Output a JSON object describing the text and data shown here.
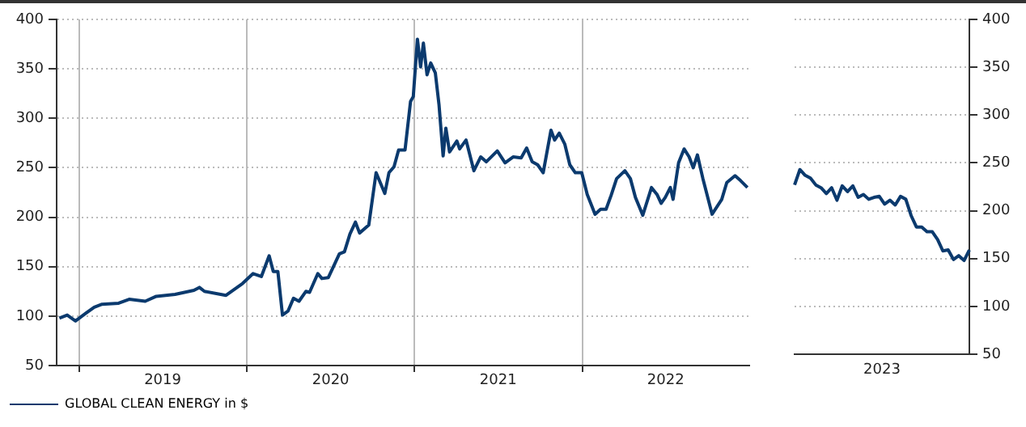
{
  "chart_data": [
    {
      "type": "line",
      "legend": "bottom left",
      "grid": true,
      "xlim": [
        "2018-11-13",
        "2022-12-31"
      ],
      "xticks": [
        {
          "value": "2019-01-01",
          "label": null
        },
        {
          "value": "2019-07-02",
          "label": "2019"
        },
        {
          "value": "2020-01-01",
          "label": null
        },
        {
          "value": "2020-07-02",
          "label": "2020"
        },
        {
          "value": "2021-01-01",
          "label": null
        },
        {
          "value": "2021-07-02",
          "label": "2021"
        },
        {
          "value": "2022-01-01",
          "label": null
        },
        {
          "value": "2022-07-02",
          "label": "2022"
        }
      ],
      "ylim": [
        50,
        400
      ],
      "yticks": [
        50,
        100,
        150,
        200,
        250,
        300,
        350,
        400
      ],
      "x": [
        "2018-11-19",
        "2018-12-06",
        "2018-12-24",
        "2019-01-16",
        "2019-02-03",
        "2019-02-20",
        "2019-03-28",
        "2019-04-20",
        "2019-05-25",
        "2019-06-18",
        "2019-07-29",
        "2019-09-08",
        "2019-09-20",
        "2019-10-01",
        "2019-11-17",
        "2019-12-23",
        "2020-01-15",
        "2020-02-02",
        "2020-02-19",
        "2020-02-28",
        "2020-03-09",
        "2020-03-19",
        "2020-03-31",
        "2020-04-12",
        "2020-04-24",
        "2020-05-09",
        "2020-05-17",
        "2020-06-04",
        "2020-06-13",
        "2020-06-27",
        "2020-07-21",
        "2020-08-01",
        "2020-08-13",
        "2020-08-25",
        "2020-09-03",
        "2020-09-23",
        "2020-10-09",
        "2020-10-28",
        "2020-11-06",
        "2020-11-17",
        "2020-11-27",
        "2020-12-11",
        "2020-12-23",
        "2020-12-29",
        "2021-01-07",
        "2021-01-14",
        "2021-01-20",
        "2021-01-28",
        "2021-02-05",
        "2021-02-15",
        "2021-02-23",
        "2021-03-04",
        "2021-03-10",
        "2021-03-18",
        "2021-04-03",
        "2021-04-09",
        "2021-04-23",
        "2021-05-10",
        "2021-05-25",
        "2021-06-06",
        "2021-06-30",
        "2021-07-17",
        "2021-08-04",
        "2021-08-21",
        "2021-09-02",
        "2021-09-14",
        "2021-09-26",
        "2021-10-08",
        "2021-10-25",
        "2021-11-02",
        "2021-11-12",
        "2021-11-24",
        "2021-12-05",
        "2021-12-17",
        "2021-12-31",
        "2022-01-12",
        "2022-01-29",
        "2022-02-10",
        "2022-02-22",
        "2022-03-05",
        "2022-03-17",
        "2022-04-04",
        "2022-04-16",
        "2022-04-27",
        "2022-05-13",
        "2022-06-01",
        "2022-06-13",
        "2022-06-22",
        "2022-07-01",
        "2022-07-12",
        "2022-07-18",
        "2022-07-30",
        "2022-08-11",
        "2022-08-22",
        "2022-08-31",
        "2022-09-09",
        "2022-09-21",
        "2022-10-11",
        "2022-11-01",
        "2022-11-12",
        "2022-11-30",
        "2022-12-12",
        "2022-12-27"
      ],
      "series": [
        {
          "name": "GLOBAL CLEAN ENERGY in $",
          "color": "#0b3a6e",
          "values": [
            98,
            101,
            95,
            103,
            109,
            112,
            113,
            117,
            115,
            120,
            122,
            126,
            129,
            125,
            121,
            133,
            143,
            140,
            161,
            145,
            145,
            101,
            105,
            118,
            115,
            125,
            124,
            143,
            138,
            139,
            163,
            165,
            183,
            195,
            184,
            192,
            245,
            224,
            245,
            251,
            268,
            268,
            317,
            322,
            380,
            352,
            376,
            344,
            356,
            346,
            314,
            262,
            290,
            266,
            277,
            269,
            278,
            247,
            261,
            256,
            267,
            255,
            261,
            260,
            270,
            256,
            253,
            245,
            288,
            278,
            285,
            274,
            253,
            245,
            245,
            223,
            203,
            208,
            208,
            222,
            239,
            247,
            239,
            220,
            202,
            230,
            223,
            214,
            220,
            230,
            218,
            255,
            269,
            261,
            250,
            263,
            239,
            203,
            218,
            235,
            242,
            237,
            230
          ]
        }
      ]
    },
    {
      "type": "line",
      "grid": "y",
      "annotations": [
        "2023"
      ],
      "ylim": [
        50,
        400
      ],
      "yticks": [
        50,
        100,
        150,
        200,
        250,
        300,
        350,
        400
      ],
      "categories": [
        null,
        null,
        null,
        null,
        null,
        null,
        null,
        null,
        null,
        null,
        null,
        null,
        null,
        null,
        null,
        null,
        null,
        null,
        null,
        null,
        null,
        null,
        null,
        null,
        null,
        null,
        null,
        null,
        null,
        null,
        null,
        null,
        null,
        null
      ],
      "series": [
        {
          "color": "#0b3a6e",
          "values": [
            227,
            243,
            237,
            234,
            227,
            224,
            218,
            224,
            211,
            226,
            220,
            226,
            214,
            217,
            212,
            214,
            215,
            207,
            211,
            206,
            215,
            212,
            195,
            183,
            183,
            178,
            178,
            170,
            158,
            159,
            149,
            153,
            148,
            159
          ]
        }
      ]
    }
  ]
}
